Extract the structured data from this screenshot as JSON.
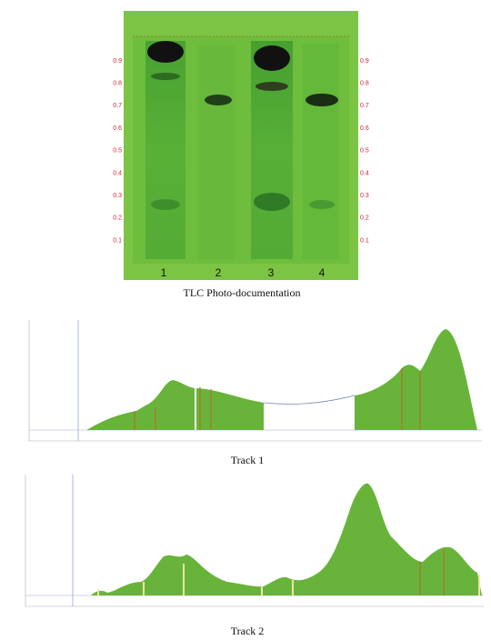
{
  "plate": {
    "rf_labels": [
      "0.9",
      "0.8",
      "0.7",
      "0.6",
      "0.5",
      "0.4",
      "0.3",
      "0.2",
      "0.1"
    ],
    "lanes": [
      "1",
      "2",
      "3",
      "4"
    ],
    "caption": "TLC Photo-documentation"
  },
  "tracks": [
    {
      "caption": "Track 1"
    },
    {
      "caption": "Track 2"
    }
  ]
}
